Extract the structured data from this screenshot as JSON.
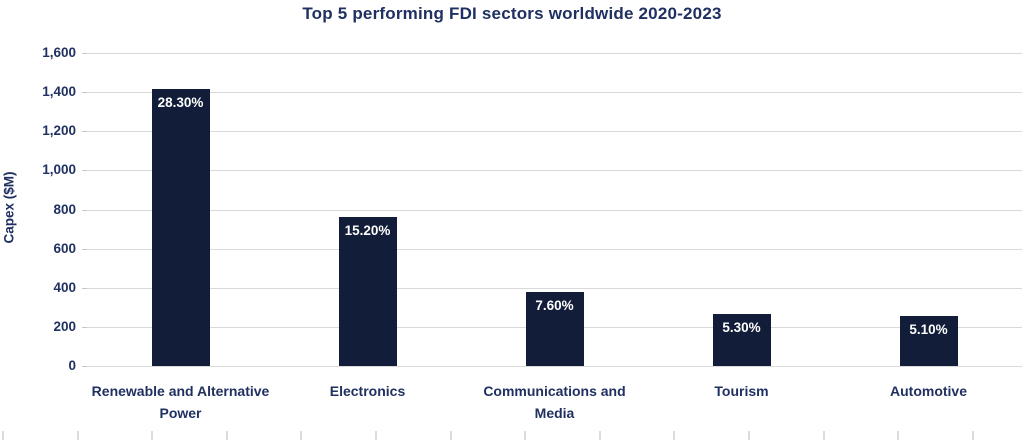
{
  "chart_data": {
    "type": "bar",
    "title": "Top 5 performing FDI sectors worldwide 2020-2023",
    "xlabel": "",
    "ylabel": "Capex ($M)",
    "categories": [
      "Renewable and Alternative Power",
      "Electronics",
      "Communications and Media",
      "Tourism",
      "Automotive"
    ],
    "values": [
      1415,
      760,
      380,
      265,
      255
    ],
    "bar_labels": [
      "28.30%",
      "15.20%",
      "7.60%",
      "5.30%",
      "5.10%"
    ],
    "ylim": [
      0,
      1600
    ],
    "ytick_step": 200,
    "ytick_labels": [
      "0",
      "200",
      "400",
      "600",
      "800",
      "1,000",
      "1,200",
      "1,400",
      "1,600"
    ],
    "grid": true,
    "legend": false,
    "colors": {
      "bar": "#111d39",
      "text": "#1f3061",
      "gridline": "#d9d9d9",
      "bar_label_text": "#ffffff",
      "background": "#ffffff"
    }
  },
  "footer_ruler": {
    "tick_count": 14
  }
}
